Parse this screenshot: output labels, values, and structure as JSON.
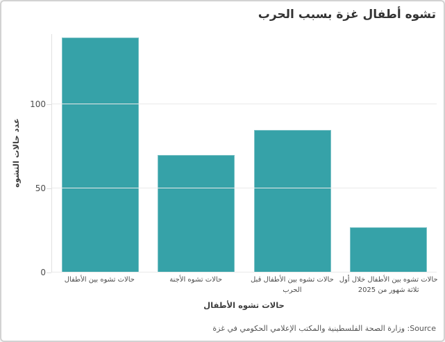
{
  "frame": {
    "background": "#ffffff",
    "border_color": "#d2d2d2"
  },
  "chart_data": {
    "type": "bar",
    "title": "تشوه أطفال غزة بسبب الحرب",
    "xlabel": "حالات تشوه الأطفال",
    "ylabel": "عدد حالات التشوه",
    "categories": [
      "حالات تشوه بين الأطفال",
      "حالات تشوه الأجنة",
      "حالات تشوه بين الأطفال قبل الحرب",
      "حالات تشوه بين الأطفال خلال أول ثلاثة شهور من 2025"
    ],
    "values": [
      140,
      70,
      85,
      27
    ],
    "yticks": [
      0,
      50,
      100
    ],
    "ylim": [
      0,
      142
    ],
    "grid": true,
    "legend": false,
    "direction": "rtl",
    "bar_color": "#36a2a8"
  },
  "source_label": "Source: وزارة الصحة الفلسطينية والمكتب الإعلامي الحكومي في غزة",
  "colors": {
    "bar": "#36a2a8",
    "gridline": "#e9e9e9",
    "axis_line": "#e0e0e0",
    "tick_text": "#4d4d4d",
    "title_text": "#333333",
    "source_text": "#555555"
  }
}
